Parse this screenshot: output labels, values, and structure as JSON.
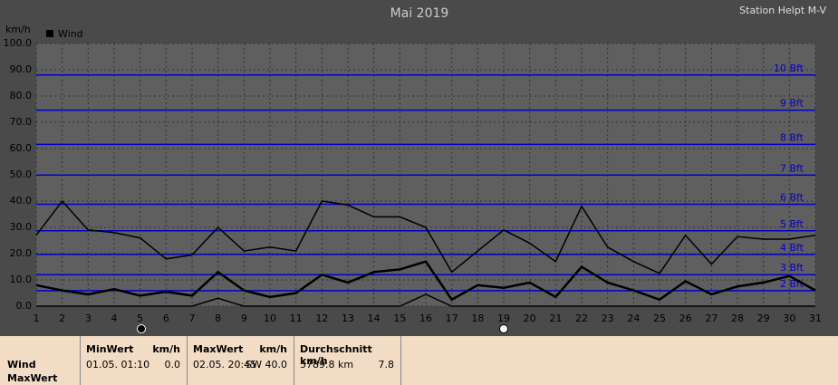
{
  "chart_data": {
    "type": "line",
    "title": "Mai 2019",
    "subtitle": "Station Helpt M-V",
    "y_label": "km/h",
    "legend": "top-left",
    "grid": true,
    "x": [
      1,
      2,
      3,
      4,
      5,
      6,
      7,
      8,
      9,
      10,
      11,
      12,
      13,
      14,
      15,
      16,
      17,
      18,
      19,
      20,
      21,
      22,
      23,
      24,
      25,
      26,
      27,
      28,
      29,
      30,
      31
    ],
    "xlim": [
      1,
      31
    ],
    "xticks": [
      1,
      2,
      3,
      4,
      5,
      6,
      7,
      8,
      9,
      10,
      11,
      12,
      13,
      14,
      15,
      16,
      17,
      18,
      19,
      20,
      21,
      22,
      23,
      24,
      25,
      26,
      27,
      28,
      29,
      30,
      31
    ],
    "ylim": [
      0,
      100
    ],
    "yticks": [
      {
        "value": 0,
        "label": "0.0"
      },
      {
        "value": 10,
        "label": "10.0"
      },
      {
        "value": 20,
        "label": "20.0"
      },
      {
        "value": 30,
        "label": "30.0"
      },
      {
        "value": 40,
        "label": "40.0"
      },
      {
        "value": 50,
        "label": "50.0"
      },
      {
        "value": 60,
        "label": "60.0"
      },
      {
        "value": 70,
        "label": "70.0"
      },
      {
        "value": 80,
        "label": "80.0"
      },
      {
        "value": 90,
        "label": "90.0"
      },
      {
        "value": 100,
        "label": "100.0"
      }
    ],
    "series": [
      {
        "name": "Wind",
        "color": "#000000",
        "values": [
          27,
          40,
          29,
          28,
          26,
          18,
          19.5,
          30,
          21,
          22.5,
          21,
          40,
          38.5,
          34,
          34,
          30,
          13,
          21,
          29,
          24,
          17,
          38,
          22.5,
          17,
          12.5,
          27,
          16,
          26.5,
          25.5,
          25.5,
          27
        ]
      },
      {
        "color": "#000000",
        "values": [
          8,
          6,
          4.5,
          6.5,
          4,
          5.5,
          4,
          13,
          6,
          3.5,
          5,
          12,
          9,
          13,
          14,
          17,
          2.5,
          8,
          7,
          9,
          3.5,
          15,
          9,
          6,
          2.5,
          9.5,
          4.5,
          7.5,
          9,
          11.5,
          6
        ]
      },
      {
        "color": "#000000",
        "values": [
          0,
          0,
          0,
          0,
          0,
          0,
          0,
          3,
          0,
          0,
          0,
          0,
          0,
          0,
          0,
          4.5,
          0,
          0,
          0,
          0,
          0,
          0,
          0,
          0,
          0,
          0,
          0,
          0,
          0,
          0,
          0
        ]
      }
    ],
    "annotations": [
      {
        "value": 5.9,
        "label": "2 Bft"
      },
      {
        "value": 12,
        "label": "3 Bft"
      },
      {
        "value": 19.7,
        "label": "4 Bft"
      },
      {
        "value": 28.7,
        "label": "5 Bft"
      },
      {
        "value": 38.8,
        "label": "6 Bft"
      },
      {
        "value": 49.9,
        "label": "7 Bft"
      },
      {
        "value": 61.6,
        "label": "8 Bft"
      },
      {
        "value": 74.6,
        "label": "9 Bft"
      },
      {
        "value": 88,
        "label": "10 Bft"
      }
    ],
    "annotation_color": "#0000cc"
  },
  "table": {
    "row_labels": [
      "Wind",
      "MaxWert"
    ],
    "columns": [
      {
        "title": "MinWert",
        "unit": "km/h",
        "cells": [
          "01.05.  01:10",
          "0.0"
        ]
      },
      {
        "title": "MaxWert",
        "unit": "km/h",
        "cells": [
          "02.05.  20:45",
          "SW 40.0"
        ]
      },
      {
        "title": "Durchschnitt km/h",
        "unit": "",
        "cells": [
          "5789.8 km",
          "7.8"
        ]
      }
    ]
  }
}
